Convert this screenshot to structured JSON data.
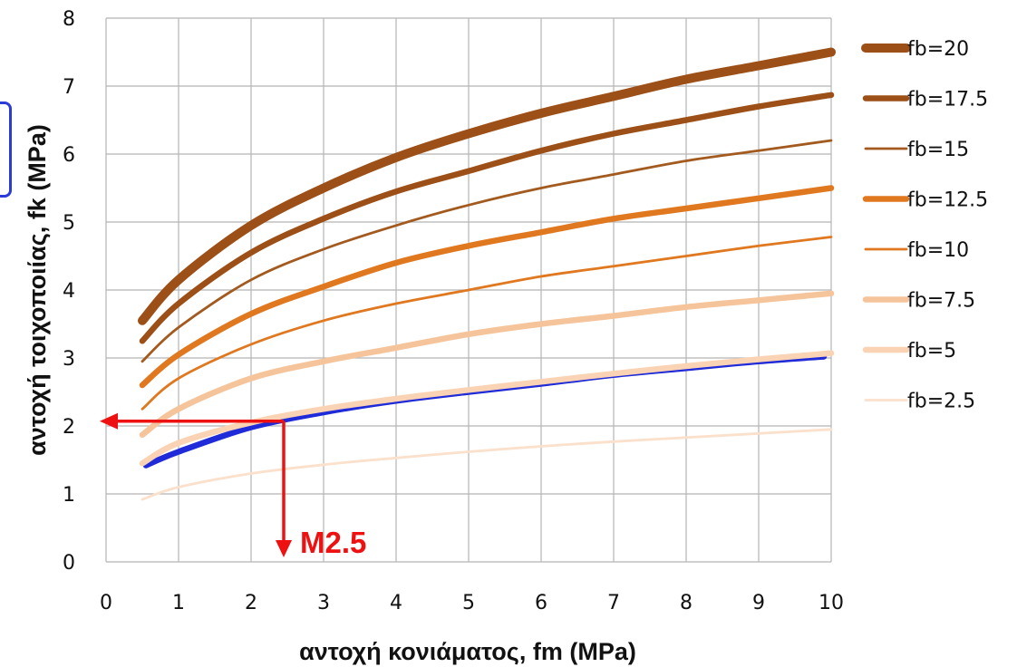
{
  "chart_data": {
    "type": "line",
    "title": "",
    "xlabel": "αντοχή κονιάματος, fm (MPa)",
    "ylabel": "αντοχή τοιχοποιίας, fk (MPa)",
    "xlim": [
      0,
      10
    ],
    "ylim": [
      0,
      8
    ],
    "x_ticks": [
      0,
      1,
      2,
      3,
      4,
      5,
      6,
      7,
      8,
      9,
      10
    ],
    "y_ticks": [
      0,
      1,
      2,
      3,
      4,
      5,
      6,
      7,
      8
    ],
    "x_tick_labels": [
      "0",
      "1",
      "2",
      "3",
      "4",
      "5",
      "6",
      "7",
      "8",
      "9",
      "10"
    ],
    "y_tick_labels": [
      "0",
      "1",
      "2",
      "3",
      "4",
      "5",
      "6",
      "7",
      "8"
    ],
    "grid": true,
    "legend_position": "right",
    "series": [
      {
        "name": "fb=20",
        "color": "#9c4f16",
        "weight": "heavy",
        "x": [
          0.5,
          1,
          2,
          3,
          4,
          5,
          6,
          7,
          8,
          9,
          10
        ],
        "y": [
          3.55,
          4.15,
          4.95,
          5.5,
          5.95,
          6.3,
          6.6,
          6.85,
          7.1,
          7.3,
          7.5
        ]
      },
      {
        "name": "fb=17.5",
        "color": "#9c4f16",
        "weight": "bold",
        "x": [
          0.5,
          1,
          2,
          3,
          4,
          5,
          6,
          7,
          8,
          9,
          10
        ],
        "y": [
          3.25,
          3.8,
          4.55,
          5.05,
          5.45,
          5.75,
          6.05,
          6.3,
          6.5,
          6.7,
          6.87
        ]
      },
      {
        "name": "fb=15",
        "color": "#a35a1f",
        "weight": "thin",
        "x": [
          0.5,
          1,
          2,
          3,
          4,
          5,
          6,
          7,
          8,
          9,
          10
        ],
        "y": [
          2.95,
          3.45,
          4.15,
          4.6,
          4.95,
          5.25,
          5.5,
          5.7,
          5.9,
          6.05,
          6.2
        ]
      },
      {
        "name": "fb=12.5",
        "color": "#e07820",
        "weight": "bold",
        "x": [
          0.5,
          1,
          2,
          3,
          4,
          5,
          6,
          7,
          8,
          9,
          10
        ],
        "y": [
          2.6,
          3.05,
          3.65,
          4.05,
          4.4,
          4.65,
          4.85,
          5.05,
          5.2,
          5.35,
          5.5
        ]
      },
      {
        "name": "fb=10",
        "color": "#e07820",
        "weight": "thin",
        "x": [
          0.5,
          1,
          2,
          3,
          4,
          5,
          6,
          7,
          8,
          9,
          10
        ],
        "y": [
          2.25,
          2.7,
          3.2,
          3.55,
          3.8,
          4.0,
          4.2,
          4.35,
          4.5,
          4.65,
          4.78
        ]
      },
      {
        "name": "fb=7.5",
        "color": "#f5c49a",
        "weight": "bold",
        "x": [
          0.5,
          1,
          2,
          3,
          4,
          5,
          6,
          7,
          8,
          9,
          10
        ],
        "y": [
          1.87,
          2.25,
          2.7,
          2.95,
          3.15,
          3.35,
          3.5,
          3.62,
          3.75,
          3.85,
          3.95
        ]
      },
      {
        "name": "fb=5",
        "color": "#f9d3b3",
        "weight": "bold",
        "x": [
          0.5,
          1,
          2,
          3,
          4,
          5,
          6,
          7,
          8,
          9,
          10
        ],
        "y": [
          1.45,
          1.75,
          2.05,
          2.25,
          2.4,
          2.53,
          2.65,
          2.77,
          2.88,
          2.98,
          3.07
        ]
      },
      {
        "name": "fb=2.5",
        "color": "#fbe0cc",
        "weight": "thin",
        "x": [
          0.5,
          1,
          2,
          3,
          4,
          5,
          6,
          7,
          8,
          9,
          10
        ],
        "y": [
          0.92,
          1.1,
          1.3,
          1.43,
          1.53,
          1.62,
          1.7,
          1.77,
          1.83,
          1.89,
          1.95
        ]
      },
      {
        "name": "",
        "color": "#1f2ad8",
        "weight": "bold",
        "x": [
          0.55,
          1,
          2,
          3,
          4,
          5,
          6,
          7,
          8,
          9,
          9.9
        ],
        "y": [
          1.42,
          1.62,
          1.98,
          2.2,
          2.37,
          2.5,
          2.62,
          2.75,
          2.85,
          2.95,
          3.02
        ]
      }
    ],
    "annotations": {
      "color": "#ee1111",
      "label": "M2.5",
      "point": {
        "x": 2.45,
        "y": 2.07
      }
    }
  }
}
